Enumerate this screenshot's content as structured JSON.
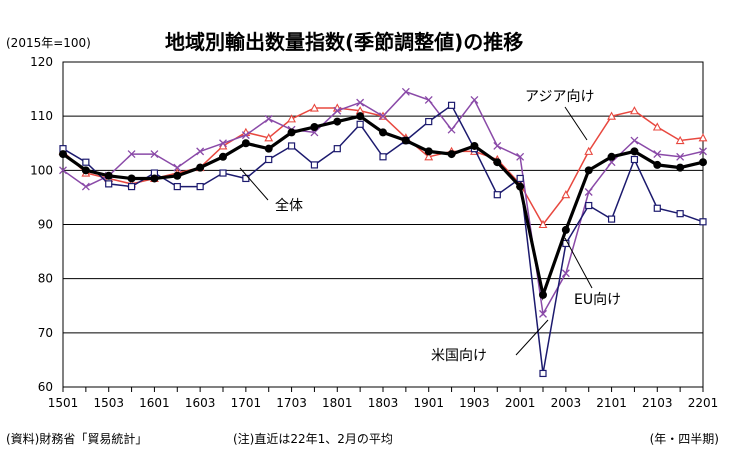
{
  "header": {
    "unit": "(2015年=100)",
    "title": "地域別輸出数量指数(季節調整値)の推移"
  },
  "footer": {
    "source": "(資料)財務省「貿易統計」",
    "note": "(注)直近は22年1、2月の平均",
    "period": "(年・四半期)"
  },
  "chart_data": {
    "type": "line",
    "ylim": [
      60,
      120
    ],
    "yticks": [
      60,
      70,
      80,
      90,
      100,
      110,
      120
    ],
    "xtick_labels": [
      "1501",
      "1503",
      "1601",
      "1603",
      "1701",
      "1703",
      "1801",
      "1803",
      "1901",
      "1903",
      "2001",
      "2003",
      "2101",
      "2103",
      "2201"
    ],
    "x": [
      "1501",
      "1502",
      "1503",
      "1504",
      "1601",
      "1602",
      "1603",
      "1604",
      "1701",
      "1702",
      "1703",
      "1704",
      "1801",
      "1802",
      "1803",
      "1804",
      "1901",
      "1902",
      "1903",
      "1904",
      "2001",
      "2002",
      "2003",
      "2004",
      "2101",
      "2102",
      "2103",
      "2104",
      "2201"
    ],
    "grid": true,
    "series": [
      {
        "name": "アジア向け",
        "color": "#e8483f",
        "marker": "triangle",
        "values": [
          103.5,
          99.5,
          98.5,
          97.5,
          98.5,
          99.5,
          100.5,
          104.5,
          107,
          106,
          109.5,
          111.5,
          111.5,
          111,
          110,
          106,
          102.5,
          103.5,
          103.5,
          102,
          97.5,
          90,
          95.5,
          103.5,
          110,
          111,
          108,
          105.5,
          106
        ]
      },
      {
        "name": "EU向け",
        "color": "#8a4aa8",
        "marker": "x",
        "values": [
          100,
          97,
          99,
          103,
          103,
          100.5,
          103.5,
          105,
          106.5,
          109.5,
          107.5,
          107,
          111,
          112.5,
          110,
          114.5,
          113,
          107.5,
          113,
          104.5,
          102.5,
          73.5,
          81,
          96,
          101.5,
          105.5,
          103,
          102.5,
          103.5
        ]
      },
      {
        "name": "米国向け",
        "color": "#1c1a6e",
        "marker": "square",
        "values": [
          104,
          101.5,
          97.5,
          97,
          99.5,
          97,
          97,
          99.5,
          98.5,
          102,
          104.5,
          101,
          104,
          108.5,
          102.5,
          105.5,
          109,
          112,
          104,
          95.5,
          98.5,
          62.5,
          86.5,
          93.5,
          91,
          102,
          93,
          92,
          90.5
        ]
      },
      {
        "name": "全体",
        "color": "#000000",
        "marker": "circle",
        "values": [
          103,
          100,
          99,
          98.5,
          98.5,
          99,
          100.5,
          102.5,
          105,
          104,
          107,
          108,
          109,
          110,
          107,
          105.5,
          103.5,
          103,
          104.5,
          101.5,
          97,
          77,
          89,
          100,
          102.5,
          103.5,
          101,
          100.5,
          101.5
        ]
      }
    ]
  }
}
